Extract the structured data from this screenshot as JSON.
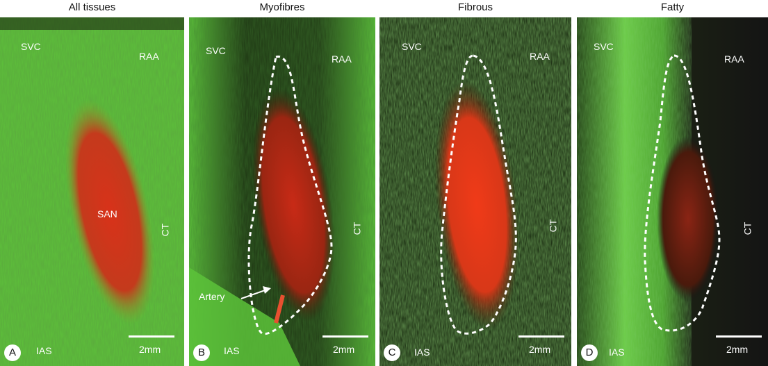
{
  "columns": [
    "All tissues",
    "Myofibres",
    "Fibrous",
    "Fatty"
  ],
  "panels": [
    {
      "letter": "A",
      "svc": "SVC",
      "raa": "RAA",
      "ct": "CT",
      "ias": "IAS",
      "scale": "2mm",
      "center": "SAN"
    },
    {
      "letter": "B",
      "svc": "SVC",
      "raa": "RAA",
      "ct": "CT",
      "ias": "IAS",
      "scale": "2mm",
      "annotation": "Artery"
    },
    {
      "letter": "C",
      "svc": "SVC",
      "raa": "RAA",
      "ct": "CT",
      "ias": "IAS",
      "scale": "2mm"
    },
    {
      "letter": "D",
      "svc": "SVC",
      "raa": "RAA",
      "ct": "CT",
      "ias": "IAS",
      "scale": "2mm"
    }
  ],
  "colors": {
    "tissue_green": "#5cc23a",
    "nodal_red": "#d8321a",
    "background_dark": "#0c0f0a",
    "outline": "#ffffff"
  }
}
